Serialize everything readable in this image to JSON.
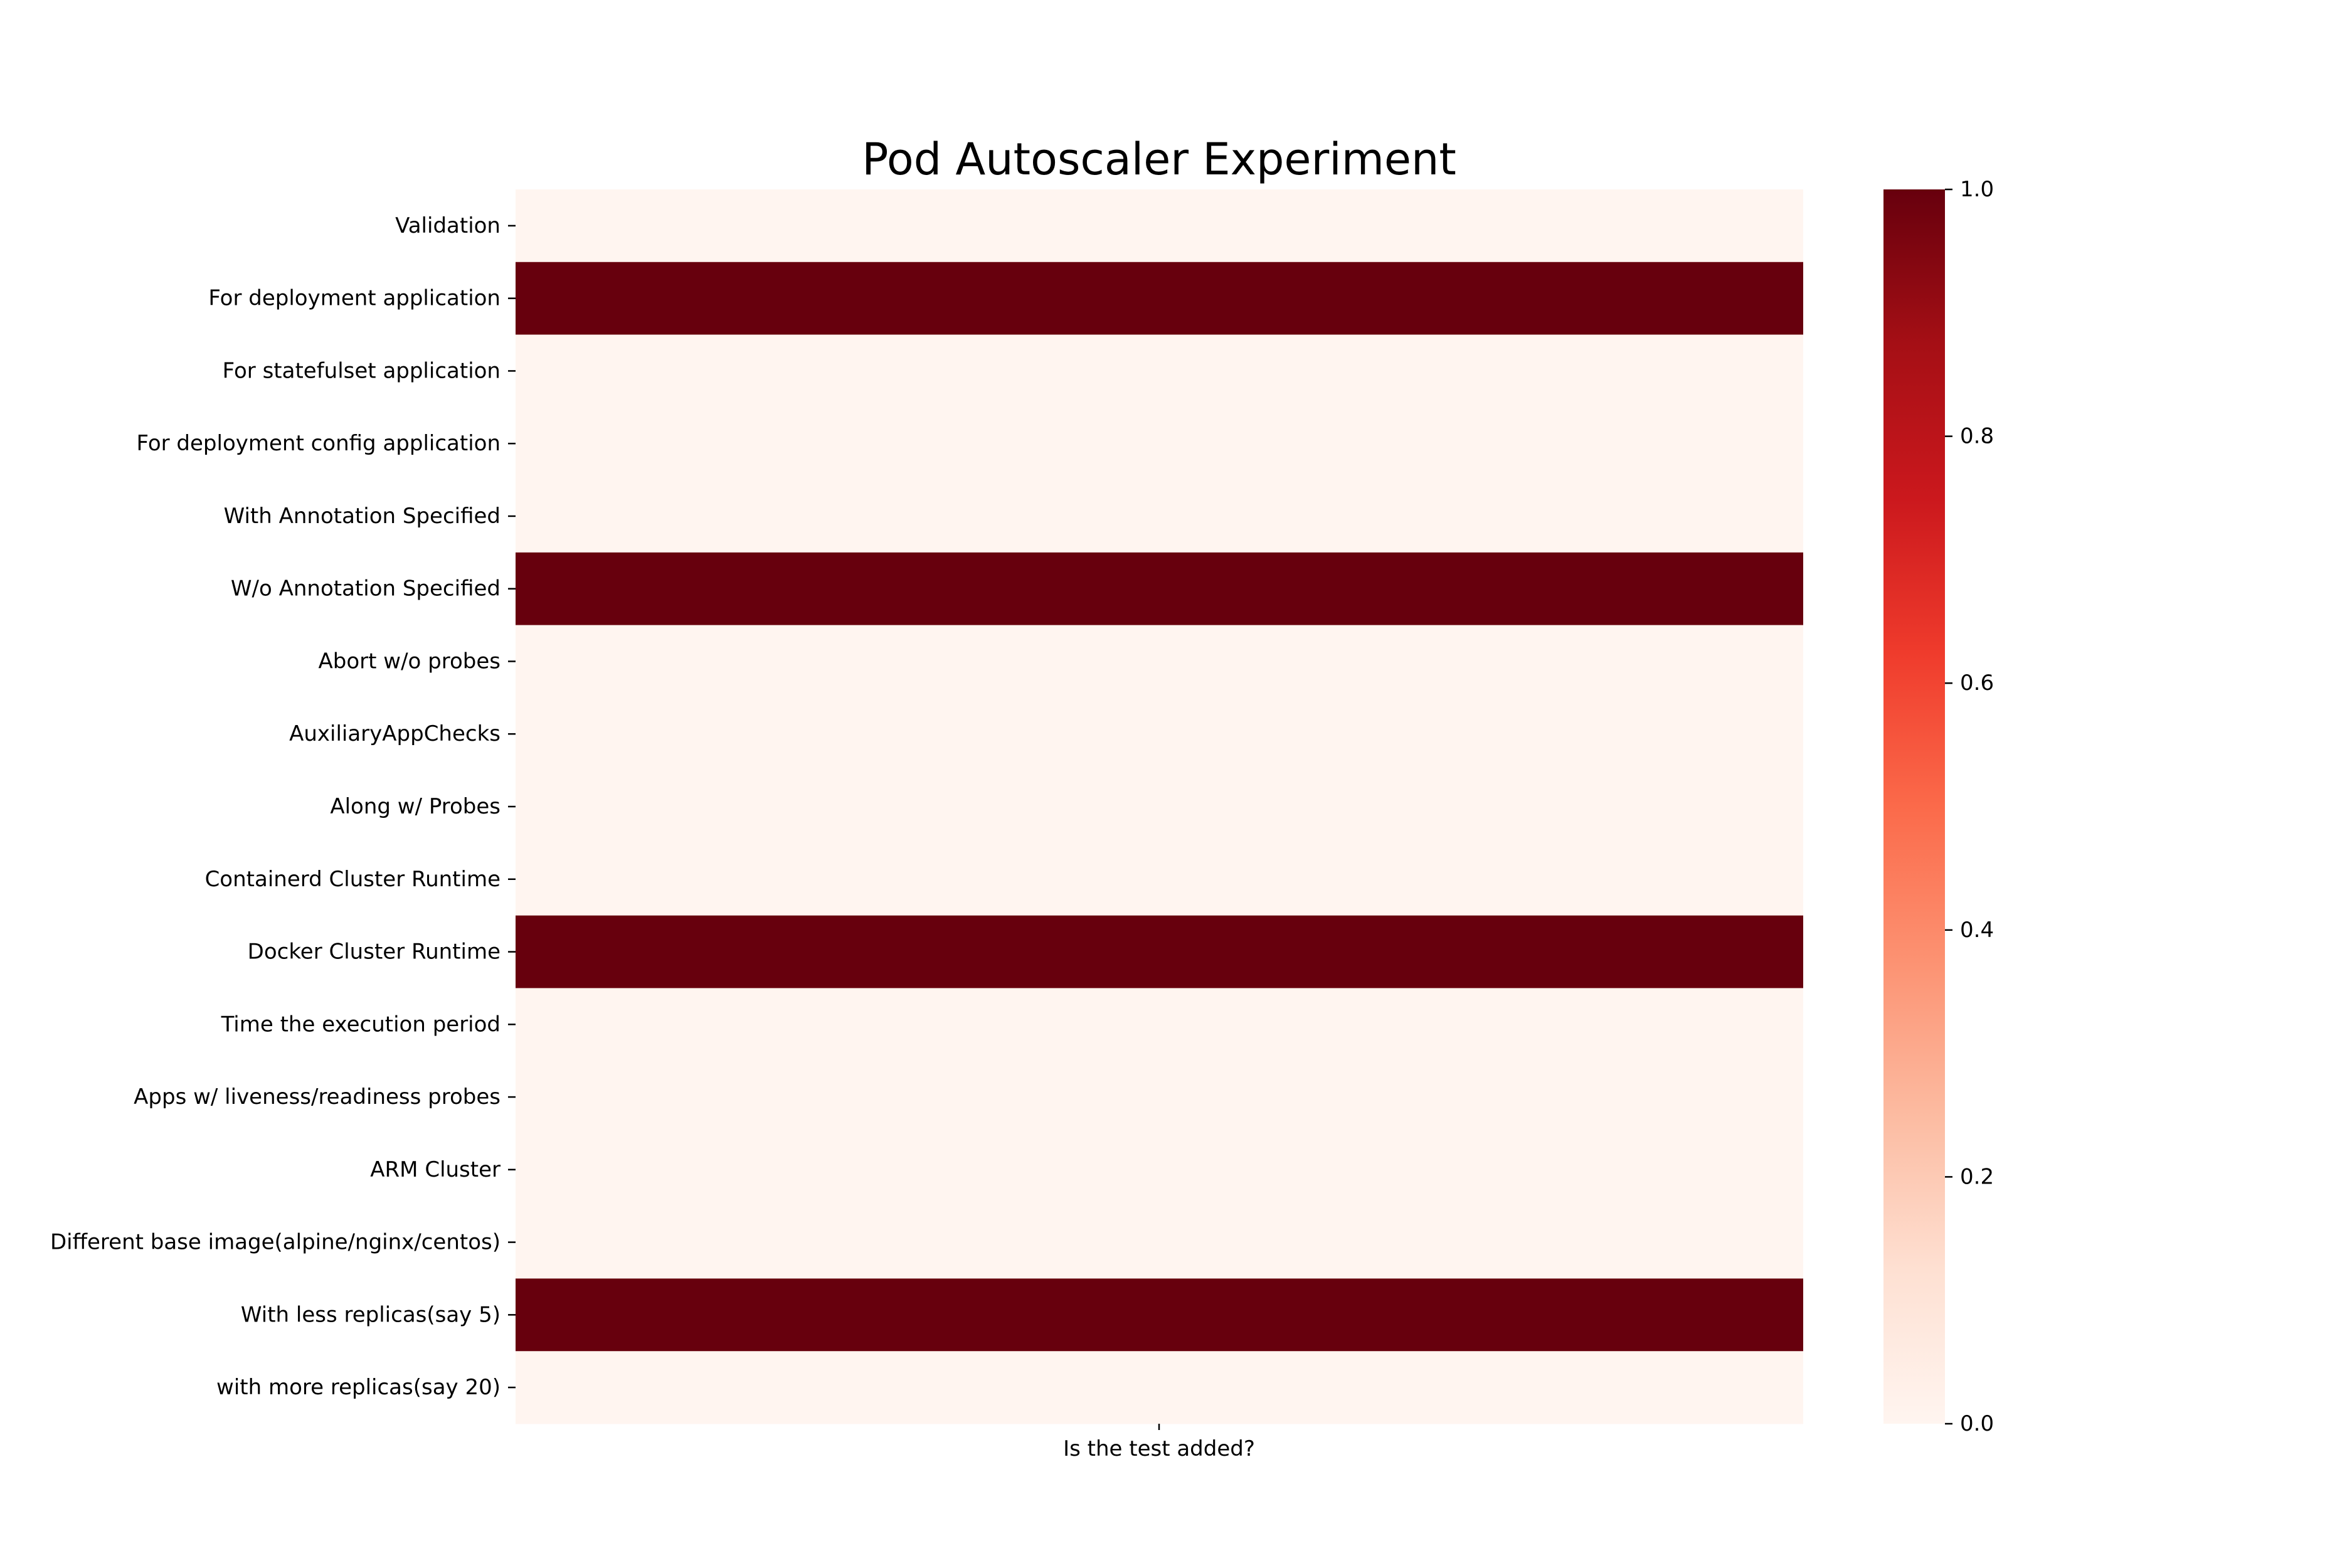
{
  "chart_data": {
    "type": "heatmap",
    "title": "Pod Autoscaler Experiment",
    "xlabel": "Is the test added?",
    "ylabel": "",
    "columns": [
      ""
    ],
    "rows": [
      "Validation",
      "For deployment application",
      "For statefulset application",
      "For deployment config application",
      "With Annotation Specified",
      "W/o Annotation Specified",
      "Abort w/o probes",
      "AuxiliaryAppChecks",
      "Along w/ Probes",
      "Containerd Cluster Runtime",
      "Docker Cluster Runtime",
      "Time the execution period",
      "Apps w/ liveness/readiness probes",
      "ARM Cluster",
      "Different base image(alpine/nginx/centos)",
      "With less replicas(say 5)",
      "with more replicas(say 20)"
    ],
    "values": [
      0,
      1,
      0,
      0,
      0,
      1,
      0,
      0,
      0,
      0,
      1,
      0,
      0,
      0,
      0,
      1,
      0
    ],
    "colormap": "Reds",
    "vmin": 0,
    "vmax": 1,
    "colorbar_ticks": [
      "0.0",
      "0.2",
      "0.4",
      "0.6",
      "0.8",
      "1.0"
    ],
    "colorbar_tick_values": [
      0,
      0.2,
      0.4,
      0.6,
      0.8,
      1.0
    ],
    "colorbar_location": "right",
    "colors": {
      "low": "#fff5f0",
      "high": "#67000d"
    }
  }
}
